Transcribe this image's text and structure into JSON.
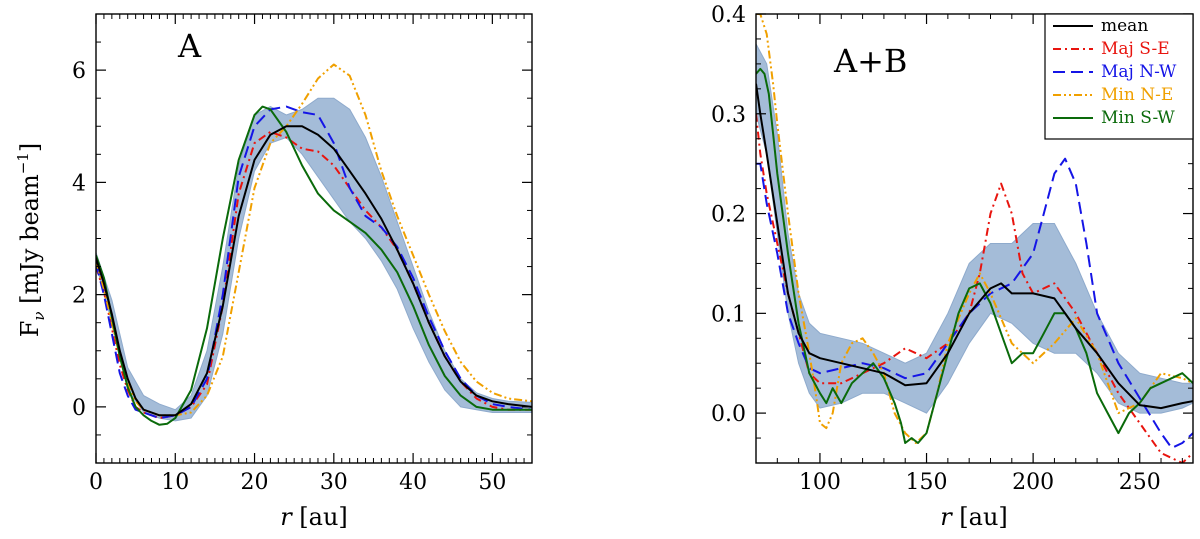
{
  "chart_data": [
    {
      "type": "line",
      "panel_label": "A",
      "xlabel_italic": "r",
      "xlabel_unit": " [au]",
      "ylabel_main": "F",
      "ylabel_sub": "ν",
      "ylabel_unit": " [mJy beam",
      "ylabel_exp": "−1",
      "ylabel_close": "]",
      "xlim": [
        0,
        55
      ],
      "ylim": [
        -1,
        7
      ],
      "xticks": [
        0,
        10,
        20,
        30,
        40,
        50
      ],
      "xtick_labels": [
        "0",
        "10",
        "20",
        "30",
        "40",
        "50"
      ],
      "yticks": [
        0,
        2,
        4,
        6
      ],
      "ytick_labels": [
        "0",
        "2",
        "4",
        "6"
      ],
      "band": {
        "x": [
          0,
          2,
          4,
          6,
          8,
          10,
          12,
          14,
          16,
          18,
          20,
          22,
          24,
          26,
          28,
          30,
          32,
          34,
          36,
          38,
          40,
          42,
          44,
          46,
          48,
          50,
          52,
          55
        ],
        "lower": [
          2.55,
          1.5,
          0.3,
          -0.1,
          -0.2,
          -0.25,
          -0.2,
          0.2,
          1.3,
          3.0,
          4.2,
          4.7,
          4.8,
          4.5,
          4.1,
          3.7,
          3.3,
          3.0,
          2.6,
          2.1,
          1.4,
          0.8,
          0.3,
          0.0,
          -0.05,
          -0.1,
          -0.1,
          -0.1
        ],
        "upper": [
          2.75,
          1.9,
          0.7,
          0.2,
          0.05,
          -0.05,
          0.2,
          1.0,
          2.5,
          4.3,
          5.2,
          5.35,
          5.2,
          5.3,
          5.5,
          5.5,
          5.3,
          4.8,
          4.1,
          3.3,
          2.5,
          1.7,
          1.0,
          0.5,
          0.25,
          0.15,
          0.1,
          0.08
        ]
      },
      "series": [
        {
          "name": "mean",
          "color": "#000000",
          "dash": "",
          "x": [
            0,
            1,
            2,
            3,
            4,
            5,
            6,
            8,
            10,
            12,
            14,
            16,
            18,
            20,
            22,
            24,
            26,
            28,
            30,
            32,
            34,
            36,
            38,
            40,
            42,
            44,
            46,
            48,
            50,
            52,
            55
          ],
          "y": [
            2.65,
            2.2,
            1.65,
            1.0,
            0.5,
            0.15,
            -0.05,
            -0.15,
            -0.15,
            0.05,
            0.6,
            1.8,
            3.4,
            4.4,
            4.85,
            5.0,
            5.0,
            4.85,
            4.6,
            4.2,
            3.8,
            3.35,
            2.8,
            2.2,
            1.5,
            0.9,
            0.45,
            0.2,
            0.1,
            0.05,
            0.0
          ]
        },
        {
          "name": "Maj S-E",
          "color": "#e8140e",
          "dash": "8,4,2,4",
          "x": [
            0,
            1,
            2,
            3,
            4,
            5,
            6,
            8,
            10,
            12,
            14,
            16,
            18,
            20,
            22,
            24,
            26,
            28,
            30,
            32,
            34,
            36,
            38,
            40,
            42,
            44,
            46,
            48,
            50,
            52,
            55
          ],
          "y": [
            2.5,
            2.05,
            1.4,
            0.75,
            0.3,
            0.0,
            -0.1,
            -0.2,
            -0.15,
            0.0,
            0.4,
            1.8,
            3.8,
            4.7,
            4.9,
            4.8,
            4.6,
            4.55,
            4.3,
            3.9,
            3.5,
            3.2,
            2.8,
            2.2,
            1.5,
            0.9,
            0.45,
            0.15,
            0.0,
            -0.05,
            -0.05
          ]
        },
        {
          "name": "Maj N-W",
          "color": "#1515e6",
          "dash": "12,6",
          "x": [
            0,
            1,
            2,
            3,
            4,
            5,
            6,
            8,
            10,
            12,
            14,
            16,
            18,
            20,
            22,
            24,
            26,
            28,
            30,
            32,
            34,
            36,
            38,
            40,
            42,
            44,
            46,
            48,
            50,
            52,
            55
          ],
          "y": [
            2.55,
            2.0,
            1.3,
            0.6,
            0.2,
            -0.05,
            -0.1,
            -0.2,
            -0.15,
            0.0,
            0.5,
            2.0,
            4.1,
            5.0,
            5.3,
            5.35,
            5.25,
            5.2,
            4.7,
            3.9,
            3.4,
            3.2,
            2.85,
            2.3,
            1.6,
            1.0,
            0.5,
            0.2,
            0.05,
            0.0,
            -0.05
          ]
        },
        {
          "name": "Min N-E",
          "color": "#f0a000",
          "dash": "8,3,2,3,2,3",
          "x": [
            0,
            1,
            2,
            3,
            4,
            5,
            6,
            8,
            10,
            12,
            14,
            16,
            18,
            20,
            22,
            24,
            26,
            28,
            30,
            32,
            34,
            36,
            38,
            40,
            42,
            44,
            46,
            48,
            50,
            52,
            55
          ],
          "y": [
            2.6,
            2.1,
            1.5,
            0.9,
            0.4,
            0.1,
            -0.05,
            -0.15,
            -0.15,
            -0.1,
            0.2,
            0.9,
            2.4,
            3.9,
            4.7,
            5.0,
            5.4,
            5.85,
            6.1,
            5.9,
            5.2,
            4.2,
            3.4,
            2.7,
            2.0,
            1.35,
            0.8,
            0.45,
            0.25,
            0.15,
            0.1
          ]
        },
        {
          "name": "Min S-W",
          "color": "#0a6a0a",
          "dash": "",
          "x": [
            0,
            1,
            2,
            3,
            4,
            5,
            6,
            7,
            8,
            9,
            10,
            12,
            14,
            16,
            18,
            20,
            21,
            22,
            24,
            26,
            28,
            30,
            32,
            34,
            36,
            38,
            40,
            42,
            44,
            46,
            48,
            50,
            52,
            55
          ],
          "y": [
            2.7,
            2.3,
            1.6,
            0.9,
            0.35,
            0.0,
            -0.15,
            -0.25,
            -0.32,
            -0.3,
            -0.2,
            0.3,
            1.4,
            3.0,
            4.4,
            5.2,
            5.35,
            5.3,
            4.9,
            4.3,
            3.8,
            3.5,
            3.3,
            3.1,
            2.8,
            2.4,
            1.8,
            1.1,
            0.55,
            0.2,
            0.0,
            -0.05,
            -0.05,
            -0.05
          ]
        }
      ]
    },
    {
      "type": "line",
      "panel_label": "A+B",
      "xlabel_italic": "r",
      "xlabel_unit": " [au]",
      "xlim": [
        70,
        275
      ],
      "ylim": [
        -0.05,
        0.4
      ],
      "xticks": [
        100,
        150,
        200,
        250
      ],
      "xtick_labels": [
        "100",
        "150",
        "200",
        "250"
      ],
      "yticks": [
        0.0,
        0.1,
        0.2,
        0.3,
        0.4
      ],
      "ytick_labels": [
        "0.0",
        "0.1",
        "0.2",
        "0.3",
        "0.4"
      ],
      "legend": {
        "placement": "top-right",
        "entries": [
          "mean",
          "Maj S-E",
          "Maj N-W",
          "Min N-E",
          "Min S-W"
        ]
      },
      "band": {
        "x": [
          70,
          75,
          80,
          85,
          90,
          95,
          100,
          110,
          120,
          130,
          140,
          150,
          160,
          170,
          180,
          190,
          200,
          210,
          215,
          220,
          230,
          240,
          250,
          260,
          270,
          275
        ],
        "lower": [
          0.3,
          0.26,
          0.18,
          0.1,
          0.05,
          0.02,
          0.005,
          0.01,
          0.02,
          0.02,
          0.01,
          0.0,
          0.03,
          0.07,
          0.1,
          0.09,
          0.07,
          0.06,
          0.06,
          0.06,
          0.04,
          0.01,
          0.0,
          0.0,
          0.005,
          0.01
        ],
        "upper": [
          0.37,
          0.35,
          0.28,
          0.18,
          0.12,
          0.09,
          0.08,
          0.075,
          0.07,
          0.06,
          0.05,
          0.06,
          0.1,
          0.15,
          0.17,
          0.17,
          0.19,
          0.19,
          0.17,
          0.15,
          0.1,
          0.06,
          0.04,
          0.035,
          0.03,
          0.03
        ]
      },
      "series": [
        {
          "name": "mean",
          "color": "#000000",
          "dash": "",
          "x": [
            70,
            72,
            75,
            80,
            85,
            90,
            95,
            100,
            110,
            120,
            130,
            140,
            150,
            160,
            170,
            180,
            185,
            190,
            200,
            210,
            215,
            220,
            230,
            240,
            250,
            260,
            270,
            275
          ],
          "y": [
            0.33,
            0.3,
            0.26,
            0.19,
            0.12,
            0.08,
            0.06,
            0.055,
            0.05,
            0.045,
            0.04,
            0.028,
            0.03,
            0.06,
            0.1,
            0.125,
            0.13,
            0.12,
            0.12,
            0.115,
            0.1,
            0.085,
            0.06,
            0.03,
            0.008,
            0.005,
            0.01,
            0.012
          ]
        },
        {
          "name": "Maj S-E",
          "color": "#e8140e",
          "dash": "8,4,2,4",
          "x": [
            70,
            72,
            75,
            80,
            85,
            90,
            95,
            100,
            110,
            120,
            130,
            140,
            145,
            150,
            160,
            170,
            175,
            180,
            185,
            190,
            195,
            200,
            210,
            220,
            230,
            240,
            250,
            260,
            270,
            275
          ],
          "y": [
            0.3,
            0.26,
            0.22,
            0.17,
            0.12,
            0.08,
            0.04,
            0.03,
            0.03,
            0.04,
            0.05,
            0.065,
            0.06,
            0.055,
            0.07,
            0.1,
            0.14,
            0.2,
            0.23,
            0.2,
            0.14,
            0.12,
            0.13,
            0.1,
            0.06,
            0.02,
            -0.01,
            -0.04,
            -0.05,
            -0.04
          ]
        },
        {
          "name": "Maj N-W",
          "color": "#1515e6",
          "dash": "12,6",
          "x": [
            70,
            72,
            75,
            80,
            85,
            90,
            95,
            100,
            110,
            120,
            130,
            140,
            150,
            160,
            170,
            180,
            190,
            200,
            205,
            210,
            215,
            220,
            225,
            230,
            240,
            250,
            260,
            265,
            270,
            275
          ],
          "y": [
            0.25,
            0.25,
            0.21,
            0.16,
            0.1,
            0.07,
            0.045,
            0.04,
            0.045,
            0.05,
            0.045,
            0.035,
            0.04,
            0.07,
            0.1,
            0.12,
            0.13,
            0.16,
            0.2,
            0.24,
            0.255,
            0.23,
            0.17,
            0.1,
            0.05,
            0.015,
            -0.02,
            -0.035,
            -0.03,
            -0.02
          ]
        },
        {
          "name": "Min N-E",
          "color": "#f0a000",
          "dash": "8,3,2,3,2,3",
          "x": [
            70,
            72,
            75,
            78,
            80,
            85,
            90,
            95,
            98,
            100,
            103,
            106,
            110,
            115,
            120,
            125,
            130,
            135,
            140,
            145,
            150,
            155,
            160,
            170,
            175,
            180,
            190,
            200,
            210,
            220,
            230,
            240,
            250,
            260,
            270,
            275
          ],
          "y": [
            0.4,
            0.4,
            0.38,
            0.33,
            0.29,
            0.2,
            0.12,
            0.06,
            0.02,
            -0.01,
            -0.015,
            0.0,
            0.05,
            0.07,
            0.075,
            0.06,
            0.04,
            0.0,
            -0.02,
            -0.03,
            -0.02,
            0.02,
            0.07,
            0.12,
            0.14,
            0.12,
            0.07,
            0.05,
            0.07,
            0.095,
            0.06,
            0.0,
            0.01,
            0.04,
            0.035,
            0.03
          ]
        },
        {
          "name": "Min S-W",
          "color": "#0a6a0a",
          "dash": "",
          "x": [
            70,
            72,
            74,
            76,
            78,
            80,
            85,
            90,
            95,
            100,
            103,
            106,
            110,
            115,
            120,
            125,
            130,
            135,
            138,
            140,
            143,
            146,
            150,
            155,
            160,
            165,
            170,
            175,
            180,
            185,
            190,
            195,
            200,
            205,
            210,
            215,
            220,
            225,
            230,
            235,
            240,
            245,
            250,
            255,
            260,
            265,
            270,
            275
          ],
          "y": [
            0.34,
            0.345,
            0.34,
            0.32,
            0.28,
            0.24,
            0.16,
            0.09,
            0.04,
            0.02,
            0.01,
            0.025,
            0.01,
            0.03,
            0.04,
            0.05,
            0.035,
            0.01,
            -0.01,
            -0.03,
            -0.025,
            -0.03,
            -0.02,
            0.02,
            0.06,
            0.1,
            0.125,
            0.13,
            0.11,
            0.08,
            0.05,
            0.06,
            0.06,
            0.08,
            0.1,
            0.1,
            0.085,
            0.06,
            0.02,
            0.0,
            -0.02,
            0.0,
            0.01,
            0.025,
            0.03,
            0.035,
            0.04,
            0.03
          ]
        }
      ]
    }
  ],
  "colors": {
    "band": "#a4bcd8",
    "band_edge": "#8eaacc",
    "axes": "#000000"
  }
}
